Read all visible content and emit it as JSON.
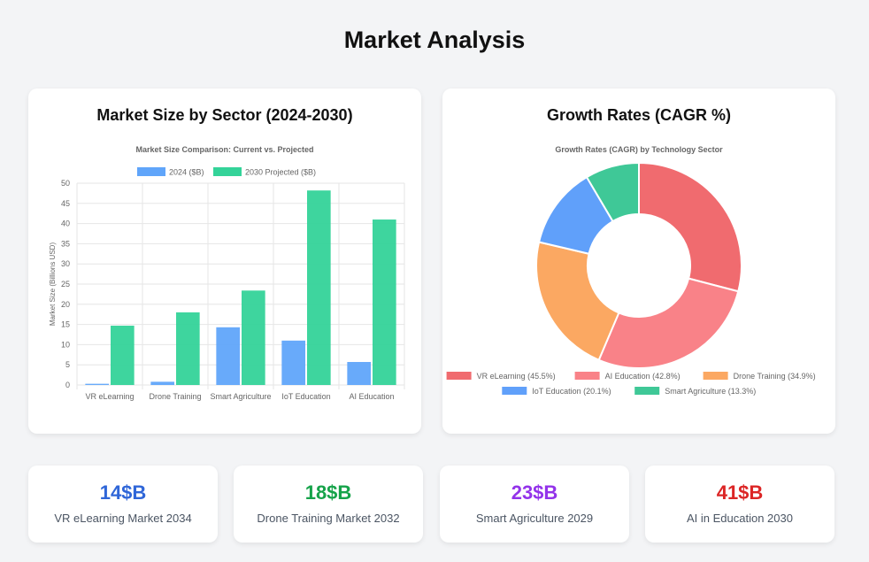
{
  "page": {
    "title": "Market Analysis"
  },
  "cards": {
    "bar": {
      "title": "Market Size by Sector (2024-2030)"
    },
    "donut": {
      "title": "Growth Rates (CAGR %)"
    }
  },
  "chart_data": [
    {
      "type": "bar",
      "title": "Market Size Comparison: Current vs. Projected",
      "xlabel": "",
      "ylabel": "Market Size (Billions USD)",
      "ylim": [
        0,
        50
      ],
      "yticks": [
        0,
        5,
        10,
        15,
        20,
        25,
        30,
        35,
        40,
        45,
        50
      ],
      "grid": true,
      "legend_position": "top",
      "categories": [
        "VR eLearning",
        "Drone Training",
        "Smart Agriculture",
        "IoT Education",
        "AI Education"
      ],
      "series": [
        {
          "name": "2024 ($B)",
          "color": "#60a5fa",
          "values": [
            0.3,
            0.8,
            14.3,
            11.0,
            5.7
          ]
        },
        {
          "name": "2030 Projected ($B)",
          "color": "#34d399",
          "values": [
            14.7,
            18.0,
            23.4,
            48.2,
            41.0
          ]
        }
      ]
    },
    {
      "type": "pie",
      "subtype": "doughnut",
      "title": "Growth Rates (CAGR) by Technology Sector",
      "legend_position": "bottom",
      "labels": [
        "VR eLearning (45.5%)",
        "AI Education (42.8%)",
        "Drone Training (34.9%)",
        "IoT Education (20.1%)",
        "Smart Agriculture (13.3%)"
      ],
      "values": [
        45.5,
        42.8,
        34.9,
        20.1,
        13.3
      ],
      "colors": [
        "#f06b6f",
        "#f98288",
        "#fba862",
        "#60a0fa",
        "#3fc897"
      ]
    }
  ],
  "stats": [
    {
      "value": "14$B",
      "label": "VR eLearning Market 2034",
      "color": "#2f66d8"
    },
    {
      "value": "18$B",
      "label": "Drone Training Market 2032",
      "color": "#16a34a"
    },
    {
      "value": "23$B",
      "label": "Smart Agriculture 2029",
      "color": "#9333ea"
    },
    {
      "value": "41$B",
      "label": "AI in Education 2030",
      "color": "#dc2626"
    }
  ]
}
